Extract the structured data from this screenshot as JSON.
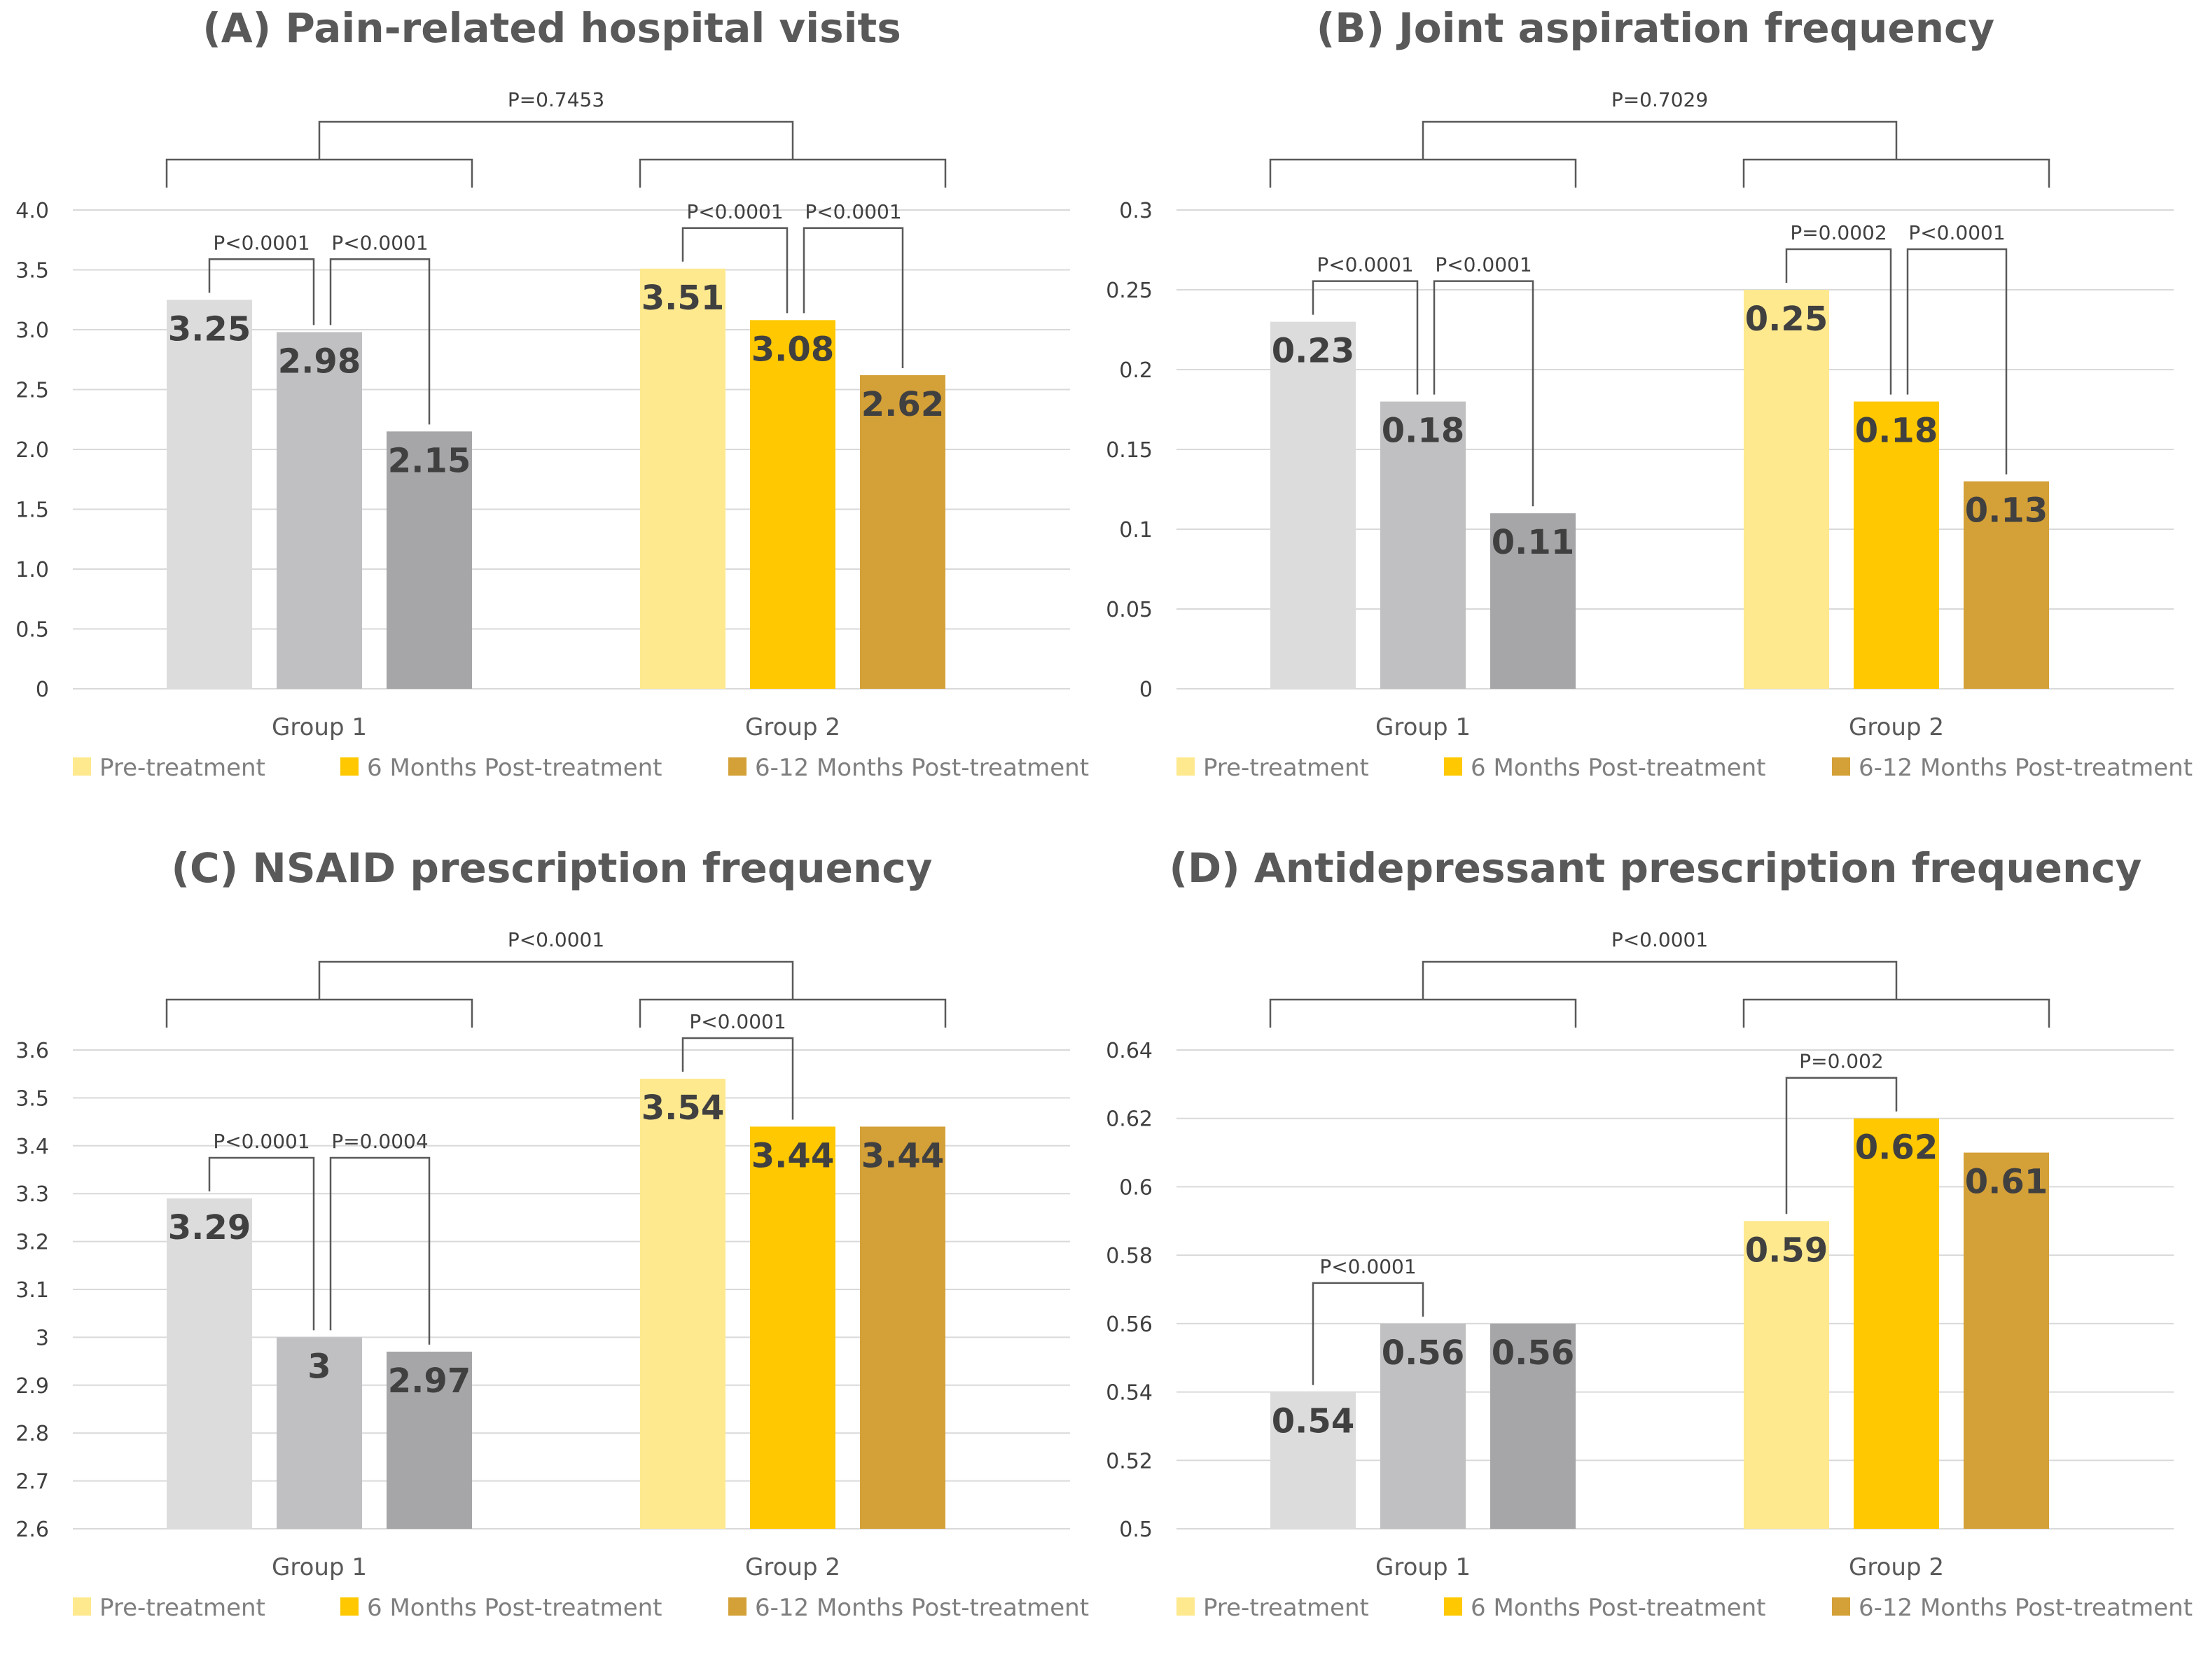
{
  "colors": {
    "group1": [
      "#dcdcdd",
      "#c0c0c2",
      "#a6a6a9"
    ],
    "group2": [
      "#ffe98f",
      "#ffc800",
      "#d4a038"
    ],
    "grid": "#d9d9d9",
    "bracket": "#595959"
  },
  "legend": [
    {
      "label": "Pre-treatment",
      "color": "#ffe98f"
    },
    {
      "label": "6 Months Post-treatment",
      "color": "#ffc800"
    },
    {
      "label": "6-12 Months Post-treatment",
      "color": "#d4a038"
    }
  ],
  "chart_data": [
    {
      "type": "bar",
      "title": "(A) Pain-related hospital visits",
      "categories": [
        "Group 1",
        "Group 2"
      ],
      "series": [
        {
          "name": "Pre-treatment",
          "values": [
            3.25,
            3.51
          ],
          "labels": [
            "3.25",
            "3.51"
          ]
        },
        {
          "name": "6 Months Post-treatment",
          "values": [
            2.98,
            3.08
          ],
          "labels": [
            "2.98",
            "3.08"
          ]
        },
        {
          "name": "6-12 Months Post-treatment",
          "values": [
            2.15,
            2.62
          ],
          "labels": [
            "2.15",
            "2.62"
          ]
        }
      ],
      "ylim": [
        0,
        4.0
      ],
      "yticks": [
        "0",
        "0.5",
        "1.0",
        "1.5",
        "2.0",
        "2.5",
        "3.0",
        "3.5",
        "4.0"
      ],
      "group_comparison": "P=0.7453",
      "comparisons": [
        {
          "group": 0,
          "from": 0,
          "to": 1,
          "label": "P<0.0001",
          "level": 0
        },
        {
          "group": 0,
          "from": 1,
          "to": 2,
          "label": "P<0.0001",
          "level": 0
        },
        {
          "group": 1,
          "from": 0,
          "to": 1,
          "label": "P<0.0001",
          "level": 0
        },
        {
          "group": 1,
          "from": 1,
          "to": 2,
          "label": "P<0.0001",
          "level": 0
        }
      ]
    },
    {
      "type": "bar",
      "title": "(B) Joint aspiration frequency",
      "categories": [
        "Group 1",
        "Group 2"
      ],
      "series": [
        {
          "name": "Pre-treatment",
          "values": [
            0.23,
            0.25
          ],
          "labels": [
            "0.23",
            "0.25"
          ]
        },
        {
          "name": "6 Months Post-treatment",
          "values": [
            0.18,
            0.18
          ],
          "labels": [
            "0.18",
            "0.18"
          ]
        },
        {
          "name": "6-12 Months Post-treatment",
          "values": [
            0.11,
            0.13
          ],
          "labels": [
            "0.11",
            "0.13"
          ]
        }
      ],
      "ylim": [
        0,
        0.3
      ],
      "yticks": [
        "0",
        "0.05",
        "0.1",
        "0.15",
        "0.2",
        "0.25",
        "0.3"
      ],
      "group_comparison": "P=0.7029",
      "comparisons": [
        {
          "group": 0,
          "from": 0,
          "to": 1,
          "label": "P<0.0001",
          "level": 0
        },
        {
          "group": 0,
          "from": 1,
          "to": 2,
          "label": "P<0.0001",
          "level": 0
        },
        {
          "group": 1,
          "from": 0,
          "to": 1,
          "label": "P=0.0002",
          "level": 0
        },
        {
          "group": 1,
          "from": 1,
          "to": 2,
          "label": "P<0.0001",
          "level": 0
        }
      ]
    },
    {
      "type": "bar",
      "title": "(C) NSAID prescription frequency",
      "categories": [
        "Group 1",
        "Group 2"
      ],
      "series": [
        {
          "name": "Pre-treatment",
          "values": [
            3.29,
            3.54
          ],
          "labels": [
            "3.29",
            "3.54"
          ]
        },
        {
          "name": "6 Months Post-treatment",
          "values": [
            3.0,
            3.44
          ],
          "labels": [
            "3",
            "3.44"
          ]
        },
        {
          "name": "6-12 Months Post-treatment",
          "values": [
            2.97,
            3.44
          ],
          "labels": [
            "2.97",
            "3.44"
          ]
        }
      ],
      "ylim": [
        2.6,
        3.6
      ],
      "yticks": [
        "2.6",
        "2.7",
        "2.8",
        "2.9",
        "3",
        "3.1",
        "3.2",
        "3.3",
        "3.4",
        "3.5",
        "3.6"
      ],
      "group_comparison": "P<0.0001",
      "comparisons": [
        {
          "group": 0,
          "from": 0,
          "to": 1,
          "label": "P<0.0001",
          "level": 0
        },
        {
          "group": 0,
          "from": 1,
          "to": 2,
          "label": "P=0.0004",
          "level": 0
        },
        {
          "group": 1,
          "from": 0,
          "to": 1,
          "label": "P<0.0001",
          "level": 0
        }
      ]
    },
    {
      "type": "bar",
      "title": "(D) Antidepressant prescription frequency",
      "categories": [
        "Group 1",
        "Group 2"
      ],
      "series": [
        {
          "name": "Pre-treatment",
          "values": [
            0.54,
            0.59
          ],
          "labels": [
            "0.54",
            "0.59"
          ]
        },
        {
          "name": "6 Months Post-treatment",
          "values": [
            0.56,
            0.62
          ],
          "labels": [
            "0.56",
            "0.62"
          ]
        },
        {
          "name": "6-12 Months Post-treatment",
          "values": [
            0.56,
            0.61
          ],
          "labels": [
            "0.56",
            "0.61"
          ]
        }
      ],
      "ylim": [
        0.5,
        0.64
      ],
      "yticks": [
        "0.5",
        "0.52",
        "0.54",
        "0.56",
        "0.58",
        "0.6",
        "0.62",
        "0.64"
      ],
      "group_comparison": "P<0.0001",
      "comparisons": [
        {
          "group": 0,
          "from": 0,
          "to": 1,
          "label": "P<0.0001",
          "level": 0
        },
        {
          "group": 1,
          "from": 0,
          "to": 1,
          "label": "P=0.002",
          "level": 0
        }
      ]
    }
  ]
}
